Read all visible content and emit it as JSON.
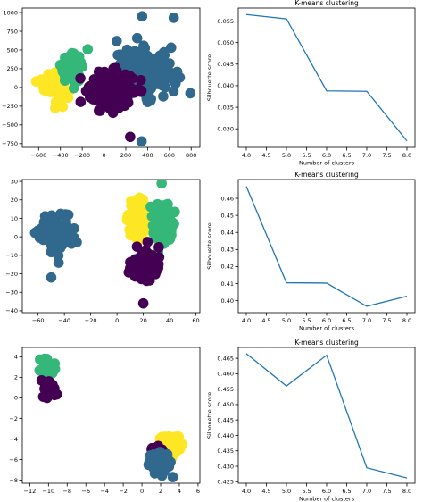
{
  "colors": {
    "viridis_purple": "#440154",
    "viridis_blue": "#31688e",
    "viridis_green": "#35b779",
    "viridis_yellow": "#fde725",
    "line_blue": "#1f77b4",
    "axes": "#000000"
  },
  "chart_data": [
    {
      "type": "scatter",
      "grid": false,
      "xlim": [
        -750,
        880
      ],
      "ylim": [
        -800,
        1060
      ],
      "xticks": [
        -600,
        -400,
        -200,
        0,
        200,
        400,
        600,
        800
      ],
      "yticks": [
        -750,
        -500,
        -250,
        0,
        250,
        500,
        750,
        1000
      ],
      "xtick_labels": [
        "−600",
        "−400",
        "−200",
        "0",
        "200",
        "400",
        "600",
        "800"
      ],
      "ytick_labels": [
        "−750",
        "−500",
        "−250",
        "0",
        "250",
        "500",
        "750",
        "1000"
      ],
      "clusters": [
        {
          "color": "viridis_yellow",
          "center": [
            -450,
            40
          ],
          "spread": [
            90,
            200
          ],
          "n": 90
        },
        {
          "color": "viridis_green",
          "center": [
            -300,
            260
          ],
          "spread": [
            90,
            160
          ],
          "n": 70
        },
        {
          "color": "viridis_blue",
          "center": [
            380,
            200
          ],
          "spread": [
            250,
            280
          ],
          "n": 170
        },
        {
          "color": "viridis_purple",
          "center": [
            70,
            -40
          ],
          "spread": [
            180,
            220
          ],
          "n": 220
        }
      ],
      "outliers": [
        {
          "color": "viridis_blue",
          "x": 350,
          "y": 950
        },
        {
          "color": "viridis_blue",
          "x": 640,
          "y": 930
        },
        {
          "color": "viridis_blue",
          "x": 345,
          "y": -720
        },
        {
          "color": "viridis_green",
          "x": -150,
          "y": 510
        },
        {
          "color": "viridis_purple",
          "x": 240,
          "y": -660
        }
      ]
    },
    {
      "type": "line",
      "title": "K-means clustering",
      "xlabel": "Number of clusters",
      "ylabel": "Silhouette score",
      "grid": false,
      "x": [
        4,
        5,
        6,
        7,
        8
      ],
      "y": [
        0.0565,
        0.0555,
        0.0388,
        0.0387,
        0.0272
      ],
      "xlim": [
        3.8,
        8.2
      ],
      "ylim": [
        0.0257,
        0.058
      ],
      "xticks": [
        4.0,
        4.5,
        5.0,
        5.5,
        6.0,
        6.5,
        7.0,
        7.5,
        8.0
      ],
      "yticks": [
        0.03,
        0.035,
        0.04,
        0.045,
        0.05,
        0.055
      ],
      "xtick_labels": [
        "4.0",
        "4.5",
        "5.0",
        "5.5",
        "6.0",
        "6.5",
        "7.0",
        "7.5",
        "8.0"
      ],
      "ytick_labels": [
        "0.030",
        "0.035",
        "0.040",
        "0.045",
        "0.050",
        "0.055"
      ]
    },
    {
      "type": "scatter",
      "grid": false,
      "xlim": [
        -72,
        63
      ],
      "ylim": [
        -41,
        31
      ],
      "xticks": [
        -60,
        -40,
        -20,
        0,
        20,
        40,
        60
      ],
      "yticks": [
        -40,
        -30,
        -20,
        -10,
        0,
        10,
        20,
        30
      ],
      "xtick_labels": [
        "−60",
        "−40",
        "−20",
        "0",
        "20",
        "40",
        "60"
      ],
      "ytick_labels": [
        "−40",
        "−30",
        "−20",
        "−10",
        "0",
        "10",
        "20",
        "30"
      ],
      "clusters": [
        {
          "color": "viridis_blue",
          "center": [
            -46,
            2
          ],
          "spread": [
            11,
            9
          ],
          "n": 120
        },
        {
          "color": "viridis_yellow",
          "center": [
            16,
            10
          ],
          "spread": [
            8,
            10
          ],
          "n": 90
        },
        {
          "color": "viridis_green",
          "center": [
            36,
            8
          ],
          "spread": [
            7,
            11
          ],
          "n": 90
        },
        {
          "color": "viridis_purple",
          "center": [
            22,
            -15
          ],
          "spread": [
            10,
            7
          ],
          "n": 110
        }
      ],
      "outliers": [
        {
          "color": "viridis_blue",
          "x": -50,
          "y": -22
        },
        {
          "color": "viridis_purple",
          "x": 20,
          "y": -36
        }
      ]
    },
    {
      "type": "line",
      "title": "K-means clustering",
      "xlabel": "Number of clusters",
      "ylabel": "Silhouette score",
      "grid": false,
      "x": [
        4,
        5,
        6,
        7,
        8
      ],
      "y": [
        0.467,
        0.4105,
        0.4103,
        0.3967,
        0.4026
      ],
      "xlim": [
        3.8,
        8.2
      ],
      "ylim": [
        0.393,
        0.471
      ],
      "xticks": [
        4.0,
        4.5,
        5.0,
        5.5,
        6.0,
        6.5,
        7.0,
        7.5,
        8.0
      ],
      "yticks": [
        0.4,
        0.41,
        0.42,
        0.43,
        0.44,
        0.45,
        0.46
      ],
      "xtick_labels": [
        "4.0",
        "4.5",
        "5.0",
        "5.5",
        "6.0",
        "6.5",
        "7.0",
        "7.5",
        "8.0"
      ],
      "ytick_labels": [
        "0.40",
        "0.41",
        "0.42",
        "0.43",
        "0.44",
        "0.45",
        "0.46"
      ]
    },
    {
      "type": "scatter",
      "grid": false,
      "xlim": [
        -12.8,
        6.2
      ],
      "ylim": [
        -8.3,
        4.9
      ],
      "xticks": [
        -12,
        -10,
        -8,
        -6,
        -4,
        -2,
        0,
        2,
        4,
        6
      ],
      "yticks": [
        -8,
        -6,
        -4,
        -2,
        0,
        2,
        4
      ],
      "xtick_labels": [
        "−12",
        "−10",
        "−8",
        "−6",
        "−4",
        "−2",
        "0",
        "2",
        "4",
        "6"
      ],
      "ytick_labels": [
        "−8",
        "−6",
        "−4",
        "−2",
        "0",
        "2",
        "4"
      ],
      "clusters": [
        {
          "color": "viridis_green",
          "center": [
            -10.1,
            3.0
          ],
          "spread": [
            0.7,
            0.7
          ],
          "n": 50
        },
        {
          "color": "viridis_purple",
          "center": [
            -10.0,
            0.8
          ],
          "spread": [
            0.6,
            0.7
          ],
          "n": 45
        },
        {
          "color": "viridis_yellow",
          "center": [
            3.1,
            -4.5
          ],
          "spread": [
            0.8,
            0.9
          ],
          "n": 55
        },
        {
          "color": "viridis_purple",
          "center": [
            1.6,
            -5.3
          ],
          "spread": [
            0.5,
            0.6
          ],
          "n": 35
        },
        {
          "color": "viridis_blue",
          "center": [
            1.9,
            -6.3
          ],
          "spread": [
            1.1,
            0.9
          ],
          "n": 80
        }
      ],
      "outliers": [
        {
          "color": "viridis_blue",
          "x": 3.3,
          "y": -7.7
        }
      ]
    },
    {
      "type": "line",
      "title": "K-means clustering",
      "xlabel": "Number of clusters",
      "ylabel": "Silhouette score",
      "grid": false,
      "x": [
        4,
        5,
        6,
        7,
        8
      ],
      "y": [
        0.4665,
        0.456,
        0.466,
        0.4295,
        0.4262
      ],
      "xlim": [
        3.8,
        8.2
      ],
      "ylim": [
        0.4245,
        0.4685
      ],
      "xticks": [
        4.0,
        4.5,
        5.0,
        5.5,
        6.0,
        6.5,
        7.0,
        7.5,
        8.0
      ],
      "yticks": [
        0.425,
        0.43,
        0.435,
        0.44,
        0.445,
        0.45,
        0.455,
        0.46,
        0.465
      ],
      "xtick_labels": [
        "4.0",
        "4.5",
        "5.0",
        "5.5",
        "6.0",
        "6.5",
        "7.0",
        "7.5",
        "8.0"
      ],
      "ytick_labels": [
        "0.425",
        "0.430",
        "0.435",
        "0.440",
        "0.445",
        "0.450",
        "0.455",
        "0.460",
        "0.465"
      ]
    }
  ]
}
